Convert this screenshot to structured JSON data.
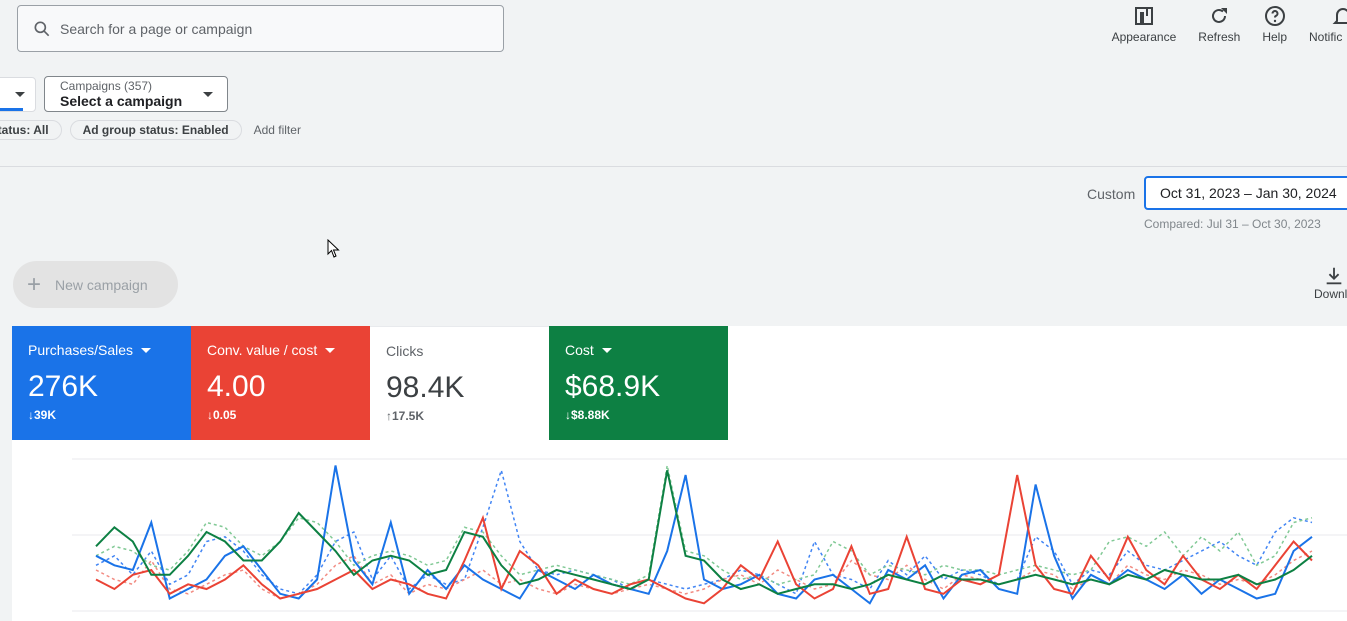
{
  "search": {
    "placeholder": "Search for a page or campaign"
  },
  "tools": [
    {
      "label": "Appearance",
      "icon": "appearance-icon"
    },
    {
      "label": "Refresh",
      "icon": "refresh-icon"
    },
    {
      "label": "Help",
      "icon": "help-icon"
    },
    {
      "label": "Notific",
      "icon": "bell-icon"
    }
  ],
  "campaign_selector": {
    "caption": "Campaigns (357)",
    "value": "Select a campaign"
  },
  "filters": {
    "chips": [
      "status: All",
      "Ad group status: Enabled"
    ],
    "add_label": "Add filter"
  },
  "date": {
    "label": "Custom",
    "range": "Oct 31, 2023 – Jan 30, 2024",
    "compared": "Compared: Jul 31 – Oct 30, 2023"
  },
  "new_campaign_label": "New campaign",
  "download_label": "Downlo",
  "metrics": [
    {
      "label": "Purchases/Sales",
      "value": "276K",
      "delta": "39K",
      "direction": "down",
      "color": "#1a73e8",
      "dropdown": true
    },
    {
      "label": "Conv. value / cost",
      "value": "4.00",
      "delta": "0.05",
      "direction": "down",
      "color": "#ea4335",
      "dropdown": true
    },
    {
      "label": "Clicks",
      "value": "98.4K",
      "delta": "17.5K",
      "direction": "up",
      "color": "#ffffff",
      "dropdown": false
    },
    {
      "label": "Cost",
      "value": "$68.9K",
      "delta": "$8.88K",
      "direction": "down",
      "color": "#0d8043",
      "dropdown": true
    }
  ],
  "chart_data": {
    "type": "line",
    "series": [
      {
        "color": "#1a73e8",
        "values": [
          55,
          45,
          40,
          90,
          10,
          20,
          30,
          55,
          65,
          40,
          15,
          10,
          30,
          150,
          50,
          25,
          90,
          15,
          40,
          20,
          45,
          30,
          20,
          10,
          40,
          30,
          20,
          35,
          25,
          20,
          15,
          60,
          140,
          30,
          20,
          25,
          35,
          15,
          10,
          30,
          35,
          20,
          5,
          40,
          30,
          45,
          10,
          35,
          40,
          20,
          15,
          130,
          55,
          10,
          35,
          25,
          40,
          30,
          20,
          35,
          15,
          30,
          20,
          10,
          15,
          60,
          75
        ]
      },
      {
        "color": "#ea4335",
        "values": [
          30,
          20,
          35,
          40,
          15,
          25,
          20,
          30,
          45,
          25,
          10,
          15,
          20,
          30,
          40,
          20,
          30,
          25,
          15,
          10,
          50,
          95,
          20,
          60,
          45,
          15,
          30,
          20,
          15,
          25,
          30,
          20,
          10,
          5,
          20,
          45,
          30,
          70,
          25,
          10,
          20,
          65,
          15,
          20,
          75,
          20,
          15,
          30,
          25,
          35,
          140,
          45,
          20,
          15,
          55,
          30,
          75,
          40,
          25,
          55,
          30,
          20,
          35,
          20,
          45,
          70,
          50
        ]
      },
      {
        "color": "#0d8043",
        "values": [
          65,
          85,
          70,
          35,
          35,
          55,
          80,
          70,
          50,
          50,
          70,
          100,
          80,
          60,
          35,
          50,
          55,
          50,
          35,
          40,
          80,
          75,
          45,
          25,
          30,
          40,
          35,
          30,
          25,
          20,
          30,
          145,
          55,
          50,
          30,
          20,
          25,
          15,
          20,
          25,
          25,
          20,
          25,
          35,
          30,
          25,
          35,
          30,
          30,
          25,
          30,
          35,
          30,
          25,
          30,
          25,
          35,
          30,
          40,
          35,
          30,
          30,
          35,
          25,
          30,
          40,
          55
        ]
      },
      {
        "color": "#4285f4",
        "values": [
          45,
          55,
          35,
          60,
          25,
          35,
          70,
          75,
          60,
          35,
          20,
          15,
          35,
          70,
          80,
          30,
          55,
          20,
          35,
          25,
          30,
          85,
          145,
          70,
          40,
          35,
          40,
          35,
          30,
          20,
          30,
          25,
          20,
          25,
          30,
          40,
          35,
          25,
          15,
          70,
          35,
          30,
          20,
          50,
          35,
          55,
          30,
          40,
          35,
          25,
          30,
          75,
          60,
          25,
          40,
          35,
          60,
          45,
          40,
          50,
          60,
          70,
          55,
          45,
          80,
          95,
          90
        ]
      },
      {
        "color": "#f28b82",
        "values": [
          40,
          30,
          25,
          50,
          20,
          15,
          25,
          35,
          40,
          20,
          10,
          15,
          25,
          45,
          55,
          25,
          35,
          15,
          25,
          20,
          30,
          40,
          25,
          30,
          20,
          15,
          25,
          20,
          15,
          20,
          25,
          20,
          15,
          20,
          30,
          35,
          25,
          40,
          30,
          20,
          25,
          50,
          35,
          30,
          45,
          30,
          20,
          35,
          30,
          25,
          30,
          40,
          35,
          20,
          30,
          25,
          45,
          35,
          30,
          40,
          35,
          25,
          30,
          25,
          35,
          50,
          60
        ]
      },
      {
        "color": "#81c995",
        "values": [
          55,
          65,
          60,
          45,
          40,
          60,
          90,
          85,
          65,
          55,
          70,
          95,
          90,
          70,
          45,
          55,
          60,
          55,
          45,
          50,
          85,
          80,
          55,
          35,
          40,
          45,
          40,
          35,
          30,
          25,
          35,
          150,
          60,
          55,
          40,
          30,
          35,
          25,
          30,
          35,
          70,
          60,
          35,
          45,
          40,
          35,
          45,
          40,
          40,
          35,
          40,
          45,
          40,
          35,
          40,
          70,
          75,
          65,
          80,
          55,
          75,
          60,
          80,
          45,
          55,
          90,
          95
        ]
      }
    ],
    "dashed_series_count": 3,
    "ylim": [
      0,
      160
    ],
    "grid": true
  }
}
